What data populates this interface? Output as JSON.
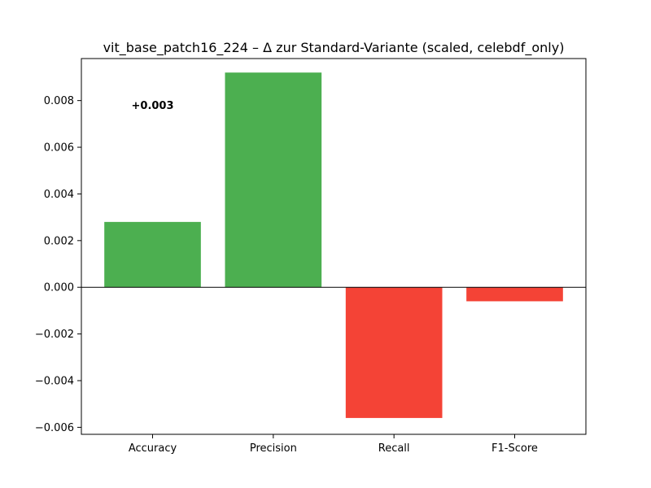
{
  "chart_data": {
    "type": "bar",
    "title": "vit_base_patch16_224 – Δ zur Standard-Variante (scaled, celebdf_only)",
    "xlabel": "",
    "ylabel": "",
    "categories": [
      "Accuracy",
      "Precision",
      "Recall",
      "F1-Score"
    ],
    "values": [
      0.0028,
      0.0092,
      -0.0056,
      -0.0006
    ],
    "ylim": [
      -0.0063,
      0.0098
    ],
    "yticks": [
      -0.006,
      -0.004,
      -0.002,
      0.0,
      0.002,
      0.004,
      0.006,
      0.008
    ],
    "ytick_labels": [
      "−0.006",
      "−0.004",
      "−0.002",
      "0.000",
      "0.002",
      "0.004",
      "0.006",
      "0.008"
    ],
    "grid": false,
    "colors": {
      "positive": "#4caf50",
      "negative": "#f44336",
      "axis": "#000000"
    },
    "annotations": [
      {
        "text": "+0.003",
        "x_category": "Accuracy",
        "y": 0.0078
      }
    ]
  }
}
